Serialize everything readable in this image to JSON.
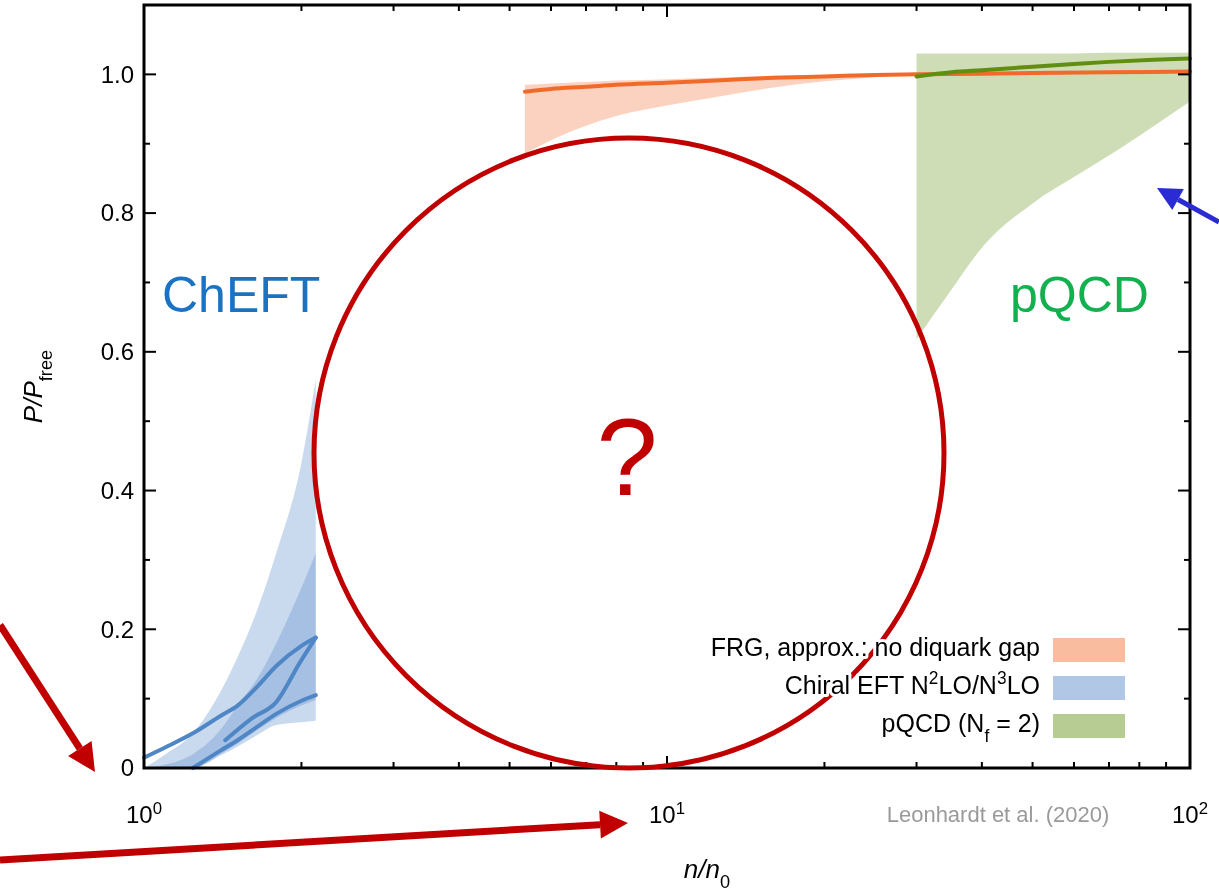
{
  "chart_data": {
    "type": "line",
    "xlabel": "n/n$_{0}$",
    "ylabel": "P/P$_{free}$",
    "log": "x",
    "xlim": [
      1,
      100
    ],
    "ylim": [
      0,
      1.1
    ],
    "xticks": [
      {
        "value": 1,
        "label": "10$^{0}$"
      },
      {
        "value": 2,
        "label": null
      },
      {
        "value": 3,
        "label": null
      },
      {
        "value": 4,
        "label": null
      },
      {
        "value": 5,
        "label": null
      },
      {
        "value": 6,
        "label": null
      },
      {
        "value": 7,
        "label": null
      },
      {
        "value": 8,
        "label": null
      },
      {
        "value": 9,
        "label": null
      },
      {
        "value": 10,
        "label": "10$^{1}$"
      },
      {
        "value": 20,
        "label": null
      },
      {
        "value": 30,
        "label": null
      },
      {
        "value": 40,
        "label": null
      },
      {
        "value": 50,
        "label": null
      },
      {
        "value": 60,
        "label": null
      },
      {
        "value": 70,
        "label": null
      },
      {
        "value": 80,
        "label": null
      },
      {
        "value": 90,
        "label": null
      },
      {
        "value": 100,
        "label": "10$^{2}$"
      }
    ],
    "yticks": [
      0,
      {
        "value": 0.1,
        "label": null
      },
      0.2,
      {
        "value": 0.3,
        "label": null
      },
      0.4,
      {
        "value": 0.5,
        "label": null
      },
      0.6,
      {
        "value": 0.7,
        "label": null
      },
      0.8,
      {
        "value": 0.9,
        "label": null
      },
      {
        "value": 1.0,
        "label": "1.0"
      },
      {
        "value": 1.1,
        "label": null
      }
    ],
    "grid": false,
    "legend": "bottom right",
    "series": [
      {
        "name": "FRG, approx.: no diquark gap",
        "color": "#f26a2a",
        "x": [
          5.35,
          6,
          7,
          8,
          10,
          13,
          16,
          20,
          25,
          30,
          40,
          50,
          70,
          100
        ],
        "values": [
          0.975,
          0.979,
          0.982,
          0.985,
          0.988,
          0.992,
          0.995,
          0.997,
          0.999,
          1.0,
          1.001,
          1.002,
          1.003,
          1.004
        ],
        "lower": [
          0.886,
          0.905,
          0.926,
          0.94,
          0.955,
          0.97,
          0.981,
          0.99,
          0.996,
          1.0,
          1.001,
          1.002,
          1.003,
          1.004
        ],
        "upper": [
          0.985,
          0.987,
          0.989,
          0.991,
          0.993,
          0.996,
          0.998,
          0.999,
          1.0,
          1.001,
          1.002,
          1.003,
          1.004,
          1.005
        ]
      },
      {
        "name": "Chiral EFT N$^{2}$LO/N$^{3}$LO",
        "color": "#4f86c6",
        "x": [
          1,
          1.1,
          1.24,
          1.4,
          1.51,
          1.65,
          1.79,
          2,
          2.13
        ],
        "values": [
          null,
          null,
          0,
          0.025,
          0.04,
          0.06,
          0.078,
          0.097,
          0.105
        ],
        "lower": [
          0,
          0,
          0,
          0.02,
          0.035,
          0.055,
          0.072,
          0.09,
          0.098
        ],
        "upper": [
          0,
          0.005,
          0.02,
          0.055,
          0.09,
          0.13,
          0.18,
          0.26,
          0.31
        ]
      },
      {
        "color": "#4f86c6",
        "x": [
          1,
          1.1,
          1.24,
          1.4,
          1.51,
          1.65,
          1.79,
          2,
          2.13
        ],
        "values": [
          0.015,
          0.03,
          0.05,
          0.075,
          0.09,
          0.118,
          0.147,
          0.176,
          0.188
        ],
        "lower": [
          0,
          0,
          0,
          0.018,
          0.031,
          0.048,
          0.062,
          0.066,
          0.068
        ],
        "upper": [
          0,
          0.02,
          0.05,
          0.11,
          0.16,
          0.23,
          0.31,
          0.44,
          0.56
        ]
      },
      {
        "color": "#4f86c6",
        "x": [
          1.43,
          1.61,
          1.79,
          1.99,
          2.13
        ],
        "values": [
          0.04,
          0.072,
          0.095,
          0.153,
          0.188
        ]
      },
      {
        "name": "pQCD (N$_{f}$ = 2)",
        "color": "#5f8e10",
        "x": [
          30,
          35,
          40,
          50,
          60,
          70,
          85,
          100
        ],
        "values": [
          0.997,
          1.003,
          1.006,
          1.011,
          1.015,
          1.018,
          1.021,
          1.023
        ],
        "lower": [
          0.618,
          0.69,
          0.75,
          0.814,
          0.852,
          0.883,
          0.925,
          0.961
        ],
        "upper": [
          1.03,
          1.03,
          1.03,
          1.03,
          1.03,
          1.031,
          1.031,
          1.031
        ]
      }
    ],
    "annotations": [
      "ChEFT",
      "pQCD",
      "?",
      "Leonhardt et al. (2020)"
    ]
  }
}
